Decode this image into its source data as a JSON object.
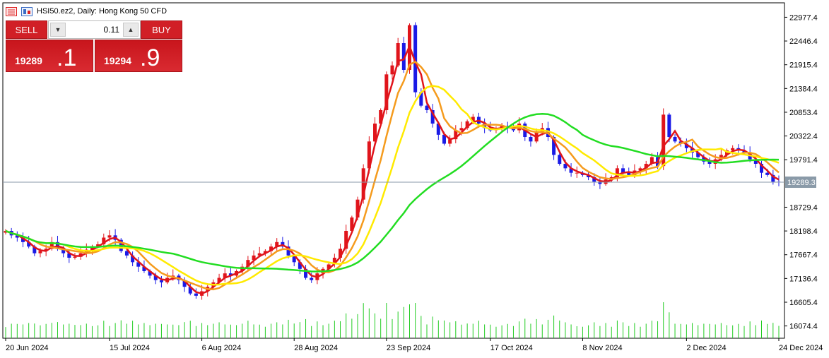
{
  "header": {
    "symbol_title": "HSI50.ez2, Daily:  Hong Kong 50 CFD"
  },
  "trade_panel": {
    "sell_label": "SELL",
    "buy_label": "BUY",
    "volume": "0.11",
    "sell_price_prefix": "19289",
    "sell_price_suffix": ".1",
    "buy_price_prefix": "19294",
    "buy_price_suffix": ".9"
  },
  "colors": {
    "bull_candle": "#e0141b",
    "bear_candle": "#1a1ae6",
    "ma_fast": "#e0141b",
    "ma_medium": "#f59b1d",
    "ma_slow": "#ffea00",
    "ma_long": "#22dd22",
    "volume": "#22cc22",
    "trade_button": "#d11f26"
  },
  "chart_data": {
    "type": "candlestick",
    "y_ticks": [
      "22977.4",
      "22446.4",
      "21915.4",
      "21384.4",
      "20853.4",
      "20322.4",
      "19791.4",
      "19289.3",
      "18729.4",
      "18198.4",
      "17667.4",
      "17136.4",
      "16605.4",
      "16074.4"
    ],
    "y_range": [
      15800,
      23300
    ],
    "x_ticks": [
      "20 Jun 2024",
      "15 Jul 2024",
      "6 Aug 2024",
      "28 Aug 2024",
      "23 Sep 2024",
      "17 Oct 2024",
      "8 Nov 2024",
      "2 Dec 2024",
      "24 Dec 2024"
    ],
    "x_tick_bar_index": [
      0,
      18,
      34,
      50,
      66,
      84,
      100,
      118,
      134
    ],
    "current_price": 19289.3,
    "grid": false,
    "moving_averages": [
      "red",
      "orange",
      "yellow",
      "green"
    ],
    "closes": [
      18200,
      18100,
      18050,
      17950,
      17850,
      17700,
      17750,
      17800,
      17950,
      17820,
      17700,
      17600,
      17620,
      17700,
      17780,
      17850,
      17900,
      18050,
      18100,
      18000,
      17750,
      17650,
      17500,
      17400,
      17300,
      17200,
      17100,
      17050,
      17150,
      17200,
      17100,
      16950,
      16800,
      16750,
      16850,
      16950,
      17050,
      17150,
      17250,
      17200,
      17300,
      17400,
      17550,
      17650,
      17700,
      17750,
      17850,
      17950,
      17850,
      17650,
      17500,
      17350,
      17150,
      17100,
      17250,
      17350,
      17450,
      17600,
      17800,
      18200,
      18500,
      18900,
      19600,
      20200,
      20600,
      20900,
      21700,
      21900,
      22400,
      21800,
      22800,
      21300,
      21000,
      20900,
      20600,
      20350,
      20150,
      20250,
      20450,
      20500,
      20650,
      20750,
      20600,
      20500,
      20450,
      20500,
      20550,
      20500,
      20450,
      20600,
      20300,
      20200,
      20400,
      20500,
      20300,
      19900,
      19700,
      19600,
      19500,
      19500,
      19450,
      19400,
      19300,
      19250,
      19350,
      19400,
      19600,
      19500,
      19450,
      19550,
      19600,
      19700,
      19850,
      19650,
      20800,
      20300,
      20200,
      20150,
      20050,
      19950,
      19850,
      19750,
      19700,
      19800,
      19900,
      20000,
      20050,
      20000,
      19950,
      19800,
      19700,
      19500,
      19450,
      19300,
      19289
    ],
    "volume_note": "relative volume bars along bottom"
  }
}
